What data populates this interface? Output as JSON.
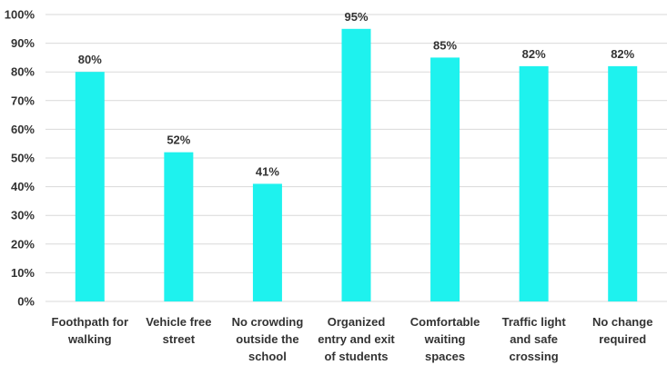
{
  "chart_data": {
    "type": "bar",
    "title": "",
    "xlabel": "",
    "ylabel": "",
    "ylim": [
      0,
      100
    ],
    "y_tick_step": 10,
    "y_tick_suffix": "%",
    "grid": true,
    "legend": "none",
    "bar_color": "#1ef2ee",
    "categories": [
      [
        "Foothpath for",
        "walking"
      ],
      [
        "Vehicle free",
        "street"
      ],
      [
        "No crowding",
        "outside the",
        "school"
      ],
      [
        "Organized",
        "entry and exit",
        "of students"
      ],
      [
        "Comfortable",
        "waiting",
        "spaces"
      ],
      [
        "Traffic light",
        "and safe",
        "crossing"
      ],
      [
        "No change",
        "required"
      ]
    ],
    "values": [
      80,
      52,
      41,
      95,
      85,
      82,
      82
    ],
    "data_labels": [
      "80%",
      "52%",
      "41%",
      "95%",
      "85%",
      "82%",
      "82%"
    ]
  }
}
